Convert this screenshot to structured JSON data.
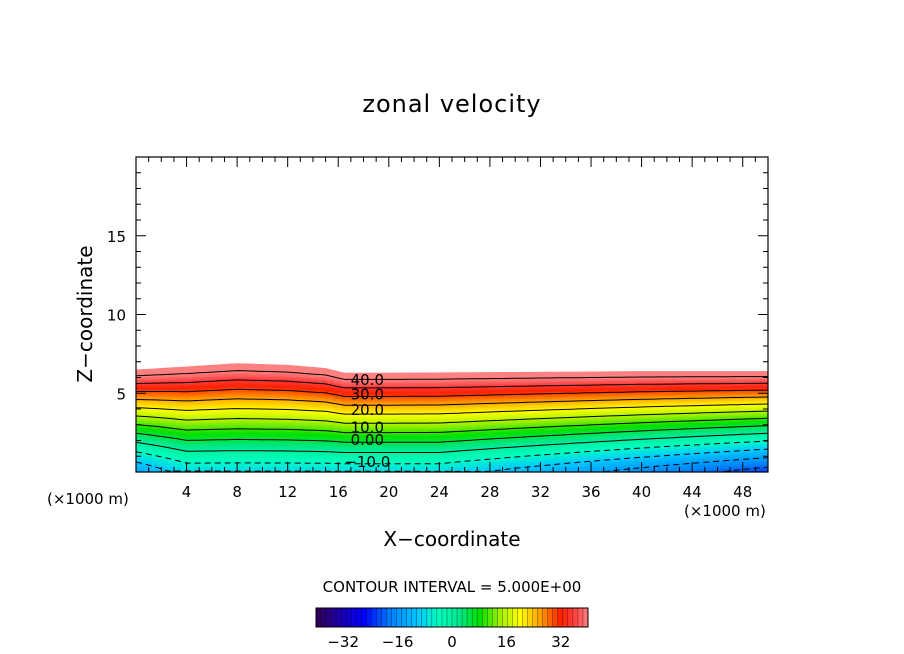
{
  "chart_data": {
    "type": "heatmap",
    "title": "zonal velocity",
    "xlabel": "X−coordinate",
    "ylabel": "Z−coordinate",
    "x_unit_left": "(×1000 m)",
    "x_unit_right": "(×1000 m)",
    "xlim": [
      0,
      50
    ],
    "ylim": [
      0,
      20
    ],
    "x_ticks": [
      "4",
      "8",
      "12",
      "16",
      "20",
      "24",
      "28",
      "32",
      "36",
      "40",
      "44",
      "48"
    ],
    "y_ticks": [
      "5",
      "10",
      "15"
    ],
    "contour_interval_text": "CONTOUR INTERVAL = 5.000E+00",
    "contour_labels": [
      "40.0",
      "30.0",
      "20.0",
      "10.0",
      "0.00",
      "−10.0"
    ],
    "contour_levels": [
      40,
      35,
      30,
      25,
      20,
      15,
      10,
      5,
      0,
      -5,
      -10,
      -15,
      -20
    ],
    "colorbar": {
      "ticks": [
        "−32",
        "−16",
        "0",
        "16",
        "32"
      ],
      "range": [
        -40,
        40
      ]
    },
    "top_boundary_km": [
      [
        0,
        6.5
      ],
      [
        4,
        6.7
      ],
      [
        8,
        6.9
      ],
      [
        12,
        6.8
      ],
      [
        15,
        6.6
      ],
      [
        16.5,
        6.3
      ],
      [
        20,
        6.3
      ],
      [
        30,
        6.35
      ],
      [
        40,
        6.4
      ],
      [
        50,
        6.4
      ]
    ],
    "grid": false,
    "colors": {
      "max": "#ff8080",
      "high": "#ff2000",
      "mid_high": "#ffff00",
      "mid": "#00e000",
      "zero": "#00ffc0",
      "low": "#00c8ff",
      "min": "#0000ff"
    }
  }
}
